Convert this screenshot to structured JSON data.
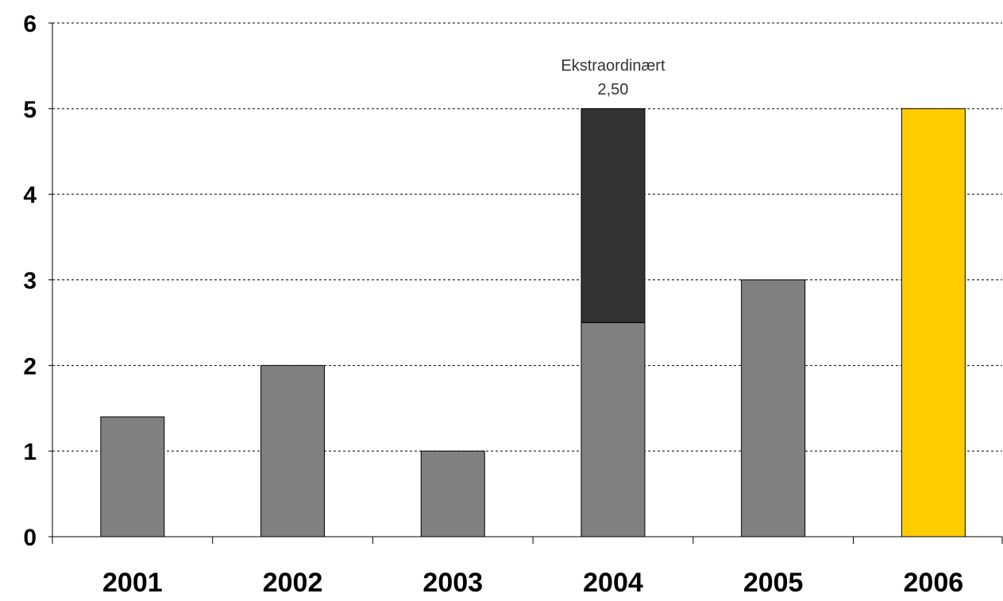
{
  "chart_data": {
    "type": "bar",
    "stacked": true,
    "categories": [
      "2001",
      "2002",
      "2003",
      "2004",
      "2005",
      "2006"
    ],
    "series": [
      {
        "values": [
          1.4,
          2,
          1,
          2.5,
          3,
          5
        ],
        "color": "#808080",
        "highlight": {
          "category": "2006",
          "color": "#FFCC00"
        }
      },
      {
        "values": [
          0,
          0,
          0,
          2.5,
          0,
          0
        ],
        "color": "#333333"
      }
    ],
    "ylim": [
      0,
      6
    ],
    "yticks": [
      "0",
      "1",
      "2",
      "3",
      "4",
      "5",
      "6"
    ],
    "grid": "horizontal-dotted",
    "annotations": [
      {
        "category": "2004",
        "label": "Ekstraordinært",
        "value_label": "2,50"
      }
    ],
    "title": "",
    "xlabel": "",
    "ylabel": ""
  }
}
